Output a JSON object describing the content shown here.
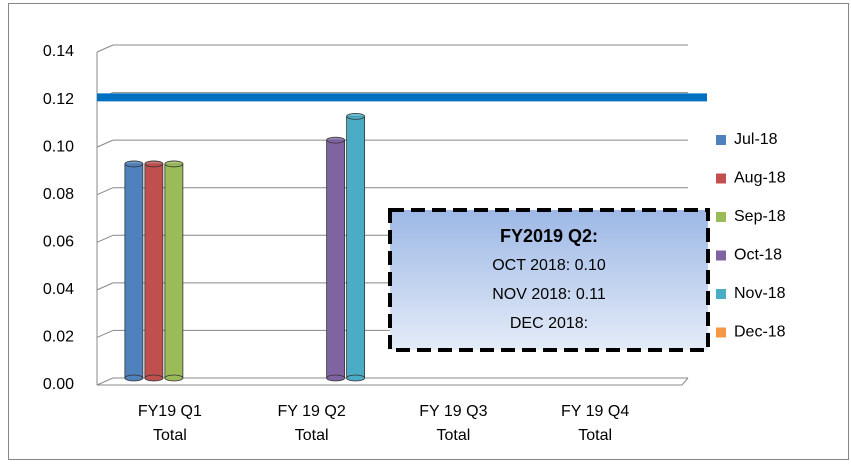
{
  "chart_data": {
    "type": "bar",
    "categories": [
      "FY19 Q1 Total",
      "FY 19 Q2 Total",
      "FY 19 Q3 Total",
      "FY 19 Q4 Total"
    ],
    "series": [
      {
        "name": "Jul-18",
        "color": "#4f81bd",
        "values": [
          0.09,
          null,
          null,
          null
        ]
      },
      {
        "name": "Aug-18",
        "color": "#c0504d",
        "values": [
          0.09,
          null,
          null,
          null
        ]
      },
      {
        "name": "Sep-18",
        "color": "#9bbb59",
        "values": [
          0.09,
          null,
          null,
          null
        ]
      },
      {
        "name": "Oct-18",
        "color": "#8064a2",
        "values": [
          null,
          0.1,
          null,
          null
        ]
      },
      {
        "name": "Nov-18",
        "color": "#4bacc6",
        "values": [
          null,
          0.11,
          null,
          null
        ]
      },
      {
        "name": "Dec-18",
        "color": "#f79646",
        "values": [
          null,
          null,
          null,
          null
        ]
      }
    ],
    "ylim": [
      0,
      0.14
    ],
    "yticks": [
      {
        "value": 0,
        "label": "0.00"
      },
      {
        "value": 0.02,
        "label": "0.02"
      },
      {
        "value": 0.04,
        "label": "0.04"
      },
      {
        "value": 0.06,
        "label": "0.06"
      },
      {
        "value": 0.08,
        "label": "0.08"
      },
      {
        "value": 0.1,
        "label": "0.10"
      },
      {
        "value": 0.12,
        "label": "0.12"
      },
      {
        "value": 0.14,
        "label": "0.14"
      }
    ],
    "grid": true,
    "legend": "right",
    "reference_line": {
      "value": 0.118,
      "color": "#0070c0"
    },
    "annotation": {
      "lines": [
        "FY2019 Q2:",
        "OCT 2018: 0.10",
        "NOV 2018: 0.11",
        "DEC 2018:"
      ]
    }
  }
}
